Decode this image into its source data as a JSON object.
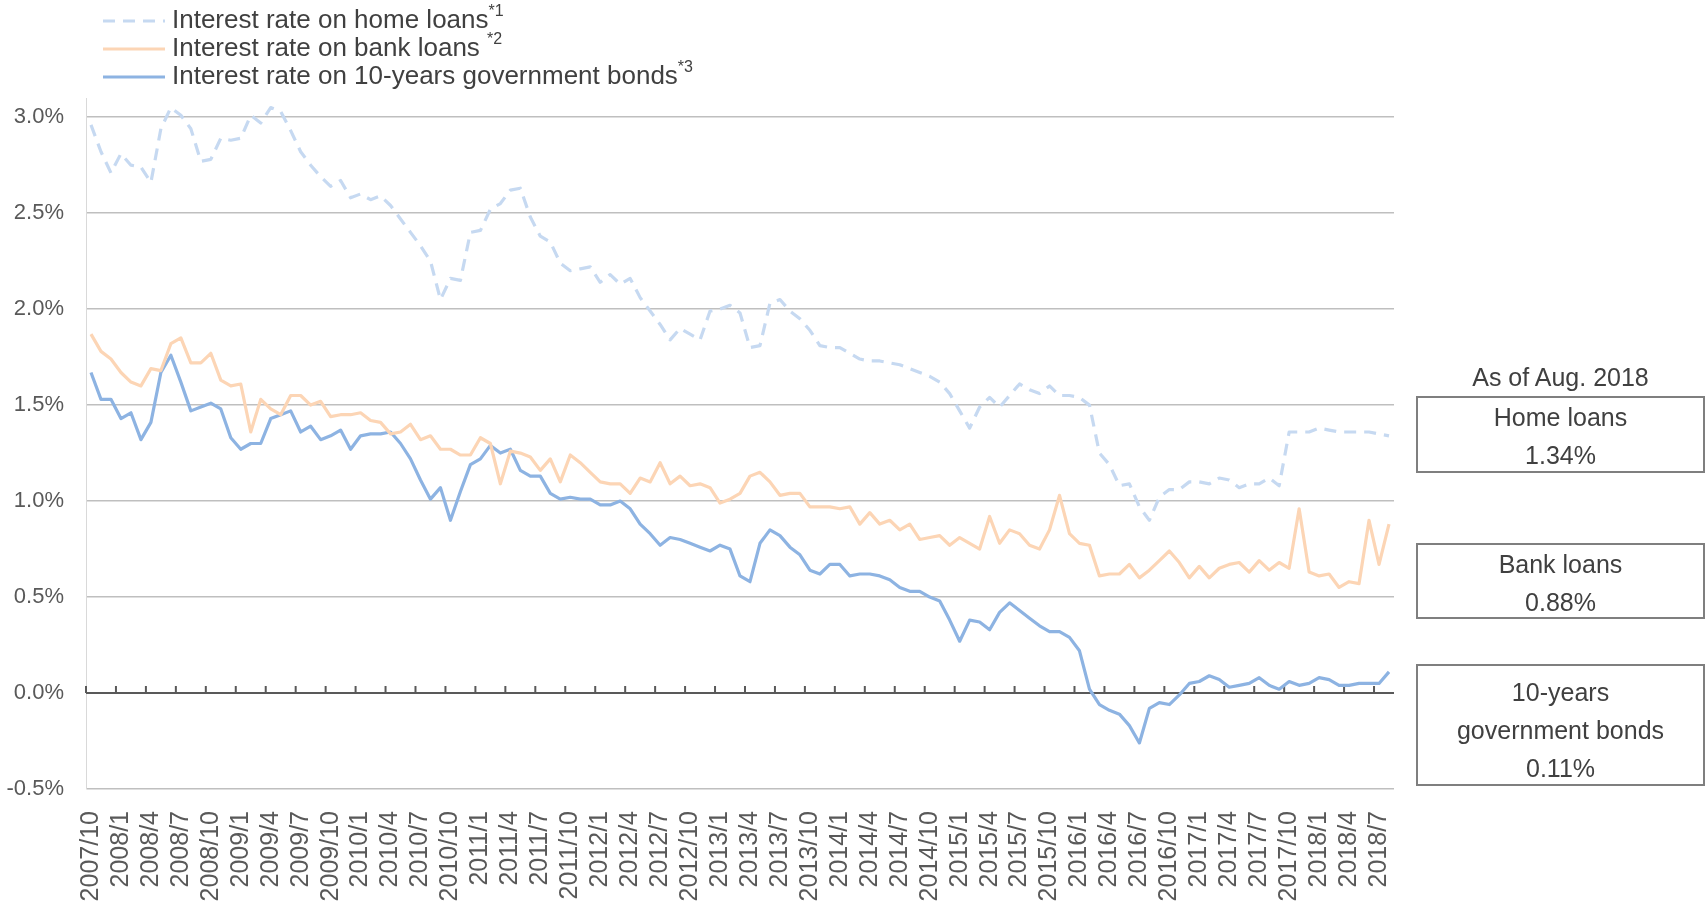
{
  "chart_data": {
    "type": "line",
    "categories": [
      "2007/10",
      null,
      null,
      "2008/1",
      null,
      null,
      "2008/4",
      null,
      null,
      "2008/7",
      null,
      null,
      "2008/10",
      null,
      null,
      "2009/1",
      null,
      null,
      "2009/4",
      null,
      null,
      "2009/7",
      null,
      null,
      "2009/10",
      null,
      null,
      "2010/1",
      null,
      null,
      "2010/4",
      null,
      null,
      "2010/7",
      null,
      null,
      "2010/10",
      null,
      null,
      "2011/1",
      null,
      null,
      "2011/4",
      null,
      null,
      "2011/7",
      null,
      null,
      "2011/10",
      null,
      null,
      "2012/1",
      null,
      null,
      "2012/4",
      null,
      null,
      "2012/7",
      null,
      null,
      "2012/10",
      null,
      null,
      "2013/1",
      null,
      null,
      "2013/4",
      null,
      null,
      "2013/7",
      null,
      null,
      "2013/10",
      null,
      null,
      "2014/1",
      null,
      null,
      "2014/4",
      null,
      null,
      "2014/7",
      null,
      null,
      "2014/10",
      null,
      null,
      "2015/1",
      null,
      null,
      "2015/4",
      null,
      null,
      "2015/7",
      null,
      null,
      "2015/10",
      null,
      null,
      "2016/1",
      null,
      null,
      "2016/4",
      null,
      null,
      "2016/7",
      null,
      null,
      "2016/10",
      null,
      null,
      "2017/1",
      null,
      null,
      "2017/4",
      null,
      null,
      "2017/7",
      null,
      null,
      "2017/10",
      null,
      null,
      "2018/1",
      null,
      null,
      "2018/4",
      null,
      null,
      "2018/7",
      null
    ],
    "series": [
      {
        "name": "Interest rate on home loans$^{*1}$",
        "color": "#c6d9f1",
        "line_style": "dashed",
        "values": [
          2.96,
          2.82,
          2.71,
          2.81,
          2.75,
          2.74,
          2.66,
          2.94,
          3.05,
          3.01,
          2.94,
          2.77,
          2.78,
          2.89,
          2.88,
          2.89,
          3.01,
          2.97,
          3.05,
          3.03,
          2.93,
          2.82,
          2.75,
          2.69,
          2.64,
          2.67,
          2.58,
          2.6,
          2.57,
          2.59,
          2.54,
          2.47,
          2.4,
          2.33,
          2.25,
          2.05,
          2.16,
          2.15,
          2.4,
          2.41,
          2.52,
          2.55,
          2.62,
          2.63,
          2.48,
          2.38,
          2.35,
          2.24,
          2.2,
          2.21,
          2.22,
          2.14,
          2.18,
          2.13,
          2.16,
          2.06,
          1.99,
          1.92,
          1.84,
          1.9,
          1.87,
          1.84,
          1.99,
          2.0,
          2.02,
          1.98,
          1.8,
          1.81,
          2.03,
          2.05,
          1.99,
          1.95,
          1.89,
          1.81,
          1.8,
          1.8,
          1.77,
          1.74,
          1.73,
          1.73,
          1.72,
          1.71,
          1.69,
          1.67,
          1.65,
          1.62,
          1.56,
          1.47,
          1.38,
          1.49,
          1.54,
          1.49,
          1.55,
          1.61,
          1.58,
          1.56,
          1.6,
          1.55,
          1.55,
          1.54,
          1.5,
          1.25,
          1.19,
          1.08,
          1.09,
          0.97,
          0.9,
          1.02,
          1.06,
          1.06,
          1.1,
          1.1,
          1.09,
          1.12,
          1.11,
          1.07,
          1.09,
          1.09,
          1.12,
          1.08,
          1.36,
          1.36,
          1.36,
          1.38,
          1.37,
          1.36,
          1.36,
          1.36,
          1.36,
          1.35,
          1.34
        ]
      },
      {
        "name": "Interest rate on bank loans $^{*2}$",
        "color": "#fcd5b5",
        "values": [
          1.87,
          1.78,
          1.74,
          1.67,
          1.62,
          1.6,
          1.69,
          1.68,
          1.82,
          1.85,
          1.72,
          1.72,
          1.77,
          1.63,
          1.6,
          1.61,
          1.36,
          1.53,
          1.48,
          1.45,
          1.55,
          1.55,
          1.5,
          1.52,
          1.44,
          1.45,
          1.45,
          1.46,
          1.42,
          1.41,
          1.35,
          1.36,
          1.4,
          1.32,
          1.34,
          1.27,
          1.27,
          1.24,
          1.24,
          1.33,
          1.3,
          1.09,
          1.26,
          1.25,
          1.23,
          1.16,
          1.22,
          1.1,
          1.24,
          1.2,
          1.15,
          1.1,
          1.09,
          1.09,
          1.04,
          1.12,
          1.1,
          1.2,
          1.09,
          1.13,
          1.08,
          1.09,
          1.07,
          0.99,
          1.01,
          1.04,
          1.13,
          1.15,
          1.1,
          1.03,
          1.04,
          1.04,
          0.97,
          0.97,
          0.97,
          0.96,
          0.97,
          0.88,
          0.94,
          0.88,
          0.9,
          0.85,
          0.88,
          0.8,
          0.81,
          0.82,
          0.77,
          0.81,
          0.78,
          0.75,
          0.92,
          0.78,
          0.85,
          0.83,
          0.77,
          0.75,
          0.85,
          1.03,
          0.83,
          0.78,
          0.77,
          0.61,
          0.62,
          0.62,
          0.67,
          0.6,
          0.64,
          0.69,
          0.74,
          0.68,
          0.6,
          0.66,
          0.6,
          0.65,
          0.67,
          0.68,
          0.63,
          0.69,
          0.64,
          0.68,
          0.65,
          0.96,
          0.63,
          0.61,
          0.62,
          0.55,
          0.58,
          0.57,
          0.9,
          0.67,
          0.88
        ]
      },
      {
        "name": "Interest rate on 10-years government bonds$^{*3}$",
        "color": "#8db3e2",
        "values": [
          1.67,
          1.53,
          1.53,
          1.43,
          1.46,
          1.32,
          1.41,
          1.67,
          1.76,
          1.62,
          1.47,
          1.49,
          1.51,
          1.48,
          1.33,
          1.27,
          1.3,
          1.3,
          1.43,
          1.45,
          1.47,
          1.36,
          1.39,
          1.32,
          1.34,
          1.37,
          1.27,
          1.34,
          1.35,
          1.35,
          1.36,
          1.3,
          1.22,
          1.11,
          1.01,
          1.07,
          0.9,
          1.05,
          1.19,
          1.22,
          1.29,
          1.25,
          1.27,
          1.16,
          1.13,
          1.13,
          1.04,
          1.01,
          1.02,
          1.01,
          1.01,
          0.98,
          0.98,
          1.0,
          0.96,
          0.88,
          0.83,
          0.77,
          0.81,
          0.8,
          0.78,
          0.76,
          0.74,
          0.77,
          0.75,
          0.61,
          0.58,
          0.78,
          0.85,
          0.82,
          0.76,
          0.72,
          0.64,
          0.62,
          0.67,
          0.67,
          0.61,
          0.62,
          0.62,
          0.61,
          0.59,
          0.55,
          0.53,
          0.53,
          0.5,
          0.48,
          0.38,
          0.27,
          0.38,
          0.37,
          0.33,
          0.42,
          0.47,
          0.43,
          0.39,
          0.35,
          0.32,
          0.32,
          0.29,
          0.22,
          0.02,
          -0.06,
          -0.09,
          -0.11,
          -0.17,
          -0.26,
          -0.08,
          -0.05,
          -0.06,
          -0.01,
          0.05,
          0.06,
          0.09,
          0.07,
          0.03,
          0.04,
          0.05,
          0.08,
          0.04,
          0.02,
          0.06,
          0.04,
          0.05,
          0.08,
          0.07,
          0.04,
          0.04,
          0.05,
          0.05,
          0.05,
          0.11
        ]
      }
    ],
    "ylim": [
      -0.5,
      3.1
    ],
    "yticks": [
      {
        "value": -0.5,
        "label": "-0.5%"
      },
      {
        "value": 0,
        "label": "0.0%"
      },
      {
        "value": 0.5,
        "label": "0.5%"
      },
      {
        "value": 1,
        "label": "1.0%"
      },
      {
        "value": 1.5,
        "label": "1.5%"
      },
      {
        "value": 2,
        "label": "2.0%"
      },
      {
        "value": 2.5,
        "label": "2.5%"
      },
      {
        "value": 3,
        "label": "3.0%"
      }
    ],
    "grid": "y",
    "legend": "top left",
    "marker": "none",
    "annotations": [
      "As of Aug. 2018",
      "Home loans\n1.34%",
      "Bank loans\n0.88%",
      "10-years\ngovernment bonds\n0.11%"
    ]
  }
}
